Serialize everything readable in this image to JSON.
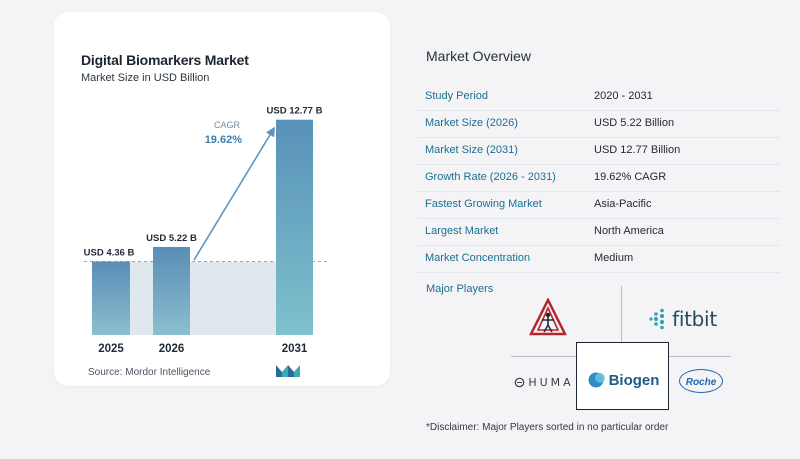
{
  "chart": {
    "title": "Digital Biomarkers Market",
    "subtitle": "Market Size in USD Billion",
    "source": "Source:  Mordor Intelligence",
    "cagr_label": "CAGR",
    "cagr_value": "19.62%"
  },
  "chart_data": {
    "type": "bar",
    "title": "Digital Biomarkers Market",
    "subtitle": "Market Size in USD Billion",
    "categories": [
      "2025",
      "2026",
      "2031"
    ],
    "values": [
      4.36,
      5.22,
      12.77
    ],
    "data_labels": [
      "USD 4.36 B",
      "USD 5.22 B",
      "USD 12.77 B"
    ],
    "annotations": [
      {
        "text": "CAGR 19.62%",
        "from": "2026",
        "to": "2031"
      }
    ],
    "grid": false,
    "legend": "none"
  },
  "colors": {
    "bar_top": "#5a8db5",
    "bar_bottom": "#8bbfce",
    "last_bar_top": "#5891b9",
    "last_bar_bottom": "#7fc1cc",
    "shade": "#dfe8ef",
    "arrow": "#5d95bf",
    "label_blue": "#1b6f93"
  },
  "overview": {
    "title": "Market Overview",
    "rows": [
      {
        "label": "Study Period",
        "value": "2020 - 2031"
      },
      {
        "label": "Market Size (2026)",
        "value": "USD 5.22 Billion"
      },
      {
        "label": "Market Size (2031)",
        "value": "USD 12.77 Billion"
      },
      {
        "label": "Growth Rate (2026 - 2031)",
        "value": "19.62% CAGR"
      },
      {
        "label": "Fastest Growing Market",
        "value": "Asia-Pacific"
      },
      {
        "label": "Largest Market",
        "value": "North America"
      },
      {
        "label": "Market Concentration",
        "value": "Medium"
      }
    ],
    "players_label": "Major Players",
    "players": [
      {
        "name": "AliveCor",
        "icon": "alivecor-logo-icon"
      },
      {
        "name": "fitbit",
        "icon": "fitbit-dots-icon"
      },
      {
        "name": "HUMA",
        "icon": "huma-logo-icon"
      },
      {
        "name": "Biogen",
        "icon": "biogen-logo-icon"
      },
      {
        "name": "Roche",
        "icon": "roche-hexagon-icon"
      }
    ]
  },
  "disclaimer": "*Disclaimer: Major Players sorted in no particular order"
}
